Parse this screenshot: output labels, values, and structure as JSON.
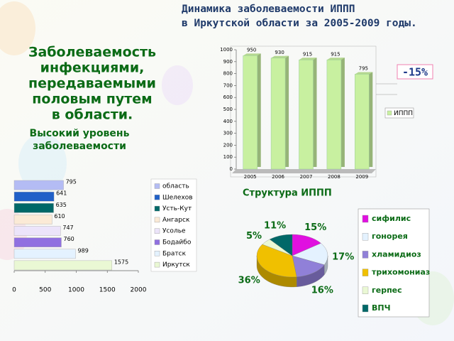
{
  "slide": {
    "title": [
      "Динамика заболеваемости ИППП",
      "в Иркутской области за 2005-2009 годы."
    ],
    "heading": [
      "Заболеваемость",
      "инфекциями,",
      "передаваемыми",
      "половым путем",
      "в области."
    ],
    "subheading": [
      "Высокий уровень",
      "заболеваемости"
    ]
  },
  "chart_data": [
    {
      "type": "bar",
      "categories": [
        "2005",
        "2006",
        "2007",
        "2008",
        "2009"
      ],
      "series": [
        {
          "name": "ИППП",
          "color": "#c8f0a0",
          "values": [
            950,
            930,
            915,
            915,
            795
          ]
        }
      ],
      "ylim": [
        0,
        1000
      ],
      "yticks": [
        0,
        100,
        200,
        300,
        400,
        500,
        600,
        700,
        800,
        900,
        1000
      ],
      "annotation": "-15%"
    },
    {
      "type": "hbar",
      "categories": [
        "область",
        "Шелехов",
        "Усть-Кут",
        "Ангарск",
        "Усолье",
        "Бодайбо",
        "Братск",
        "Иркутск"
      ],
      "values": [
        795,
        641,
        635,
        610,
        747,
        760,
        989,
        1575
      ],
      "colors": [
        "#b4bcf4",
        "#2060c8",
        "#006868",
        "#fbead6",
        "#ece4fa",
        "#9070e0",
        "#e4f2ff",
        "#eaf8d4"
      ],
      "xlim": [
        0,
        2000
      ],
      "xticks": [
        0,
        500,
        1000,
        1500,
        2000
      ]
    },
    {
      "type": "pie",
      "title": "Структура  ИППП",
      "categories": [
        "сифилис",
        "гонорея",
        "хламидиоз",
        "трихомониаз",
        "герпес",
        "ВПЧ"
      ],
      "values": [
        15,
        17,
        16,
        36,
        5,
        11
      ],
      "value_labels": [
        "15%",
        "17%",
        "16%",
        "36%",
        "5%",
        "11%"
      ],
      "colors": [
        "#e010e0",
        "#e4f2ff",
        "#9080d8",
        "#f0c000",
        "#eaf8d4",
        "#006868"
      ]
    }
  ]
}
